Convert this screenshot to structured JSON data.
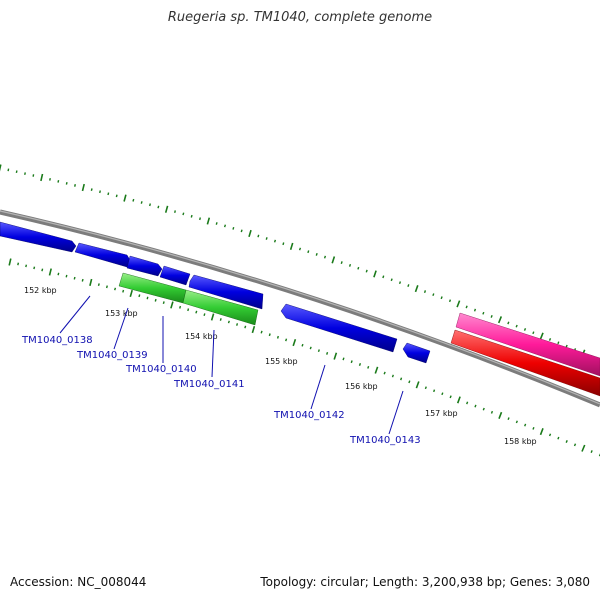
{
  "title": "Ruegeria sp. TM1040, complete genome",
  "footer": {
    "accession": "Accession: NC_008044",
    "summary": "Topology: circular; Length: 3,200,938 bp; Genes: 3,080"
  },
  "scale_labels": [
    "152 kbp",
    "153 kbp",
    "154 kbp",
    "155 kbp",
    "156 kbp",
    "157 kbp",
    "158 kbp"
  ],
  "gene_labels": [
    "TM1040_0138",
    "TM1040_0139",
    "TM1040_0140",
    "TM1040_0141",
    "TM1040_0142",
    "TM1040_0143"
  ],
  "colors": {
    "backbone": "#808080",
    "forward_cds": "#0000e0",
    "reverse_cds": "#0000e0",
    "rna": "#33cc33",
    "gc_skew": "#ff1a9a",
    "gc_content": "#ee0000",
    "tick": "#1a7a1a",
    "label": "#1010b0"
  }
}
